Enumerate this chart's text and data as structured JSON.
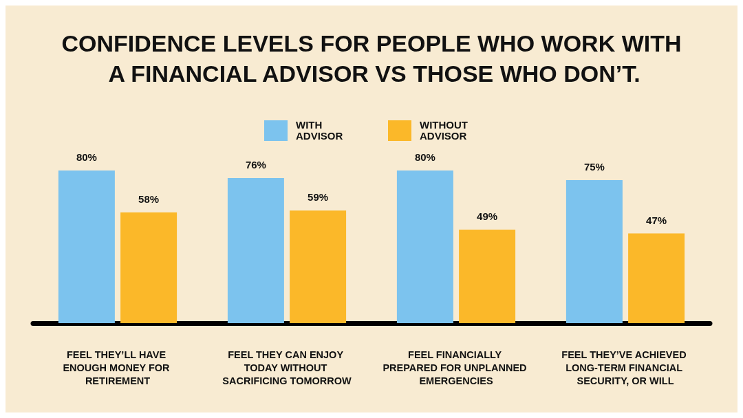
{
  "chart_data": {
    "type": "bar",
    "title": "CONFIDENCE LEVELS FOR PEOPLE WHO WORK WITH A FINANCIAL ADVISOR VS THOSE WHO DON’T.",
    "categories": [
      "FEEL THEY’LL HAVE ENOUGH MONEY FOR RETIREMENT",
      "FEEL THEY CAN ENJOY TODAY WITHOUT SACRIFICING TOMORROW",
      "FEEL FINANCIALLY PREPARED FOR UNPLANNED EMERGENCIES",
      "FEEL THEY’VE ACHIEVED LONG-TERM FINANCIAL SECURITY, OR WILL"
    ],
    "series": [
      {
        "name": "WITH ADVISOR",
        "color": "#7cc3ee",
        "values": [
          80,
          76,
          80,
          75
        ],
        "value_labels": [
          "80%",
          "76%",
          "80%",
          "75%"
        ]
      },
      {
        "name": "WITHOUT ADVISOR",
        "color": "#fbb829",
        "values": [
          58,
          59,
          49,
          47
        ],
        "value_labels": [
          "58%",
          "59%",
          "49%",
          "47%"
        ]
      }
    ],
    "legend": "top",
    "grid": false
  }
}
